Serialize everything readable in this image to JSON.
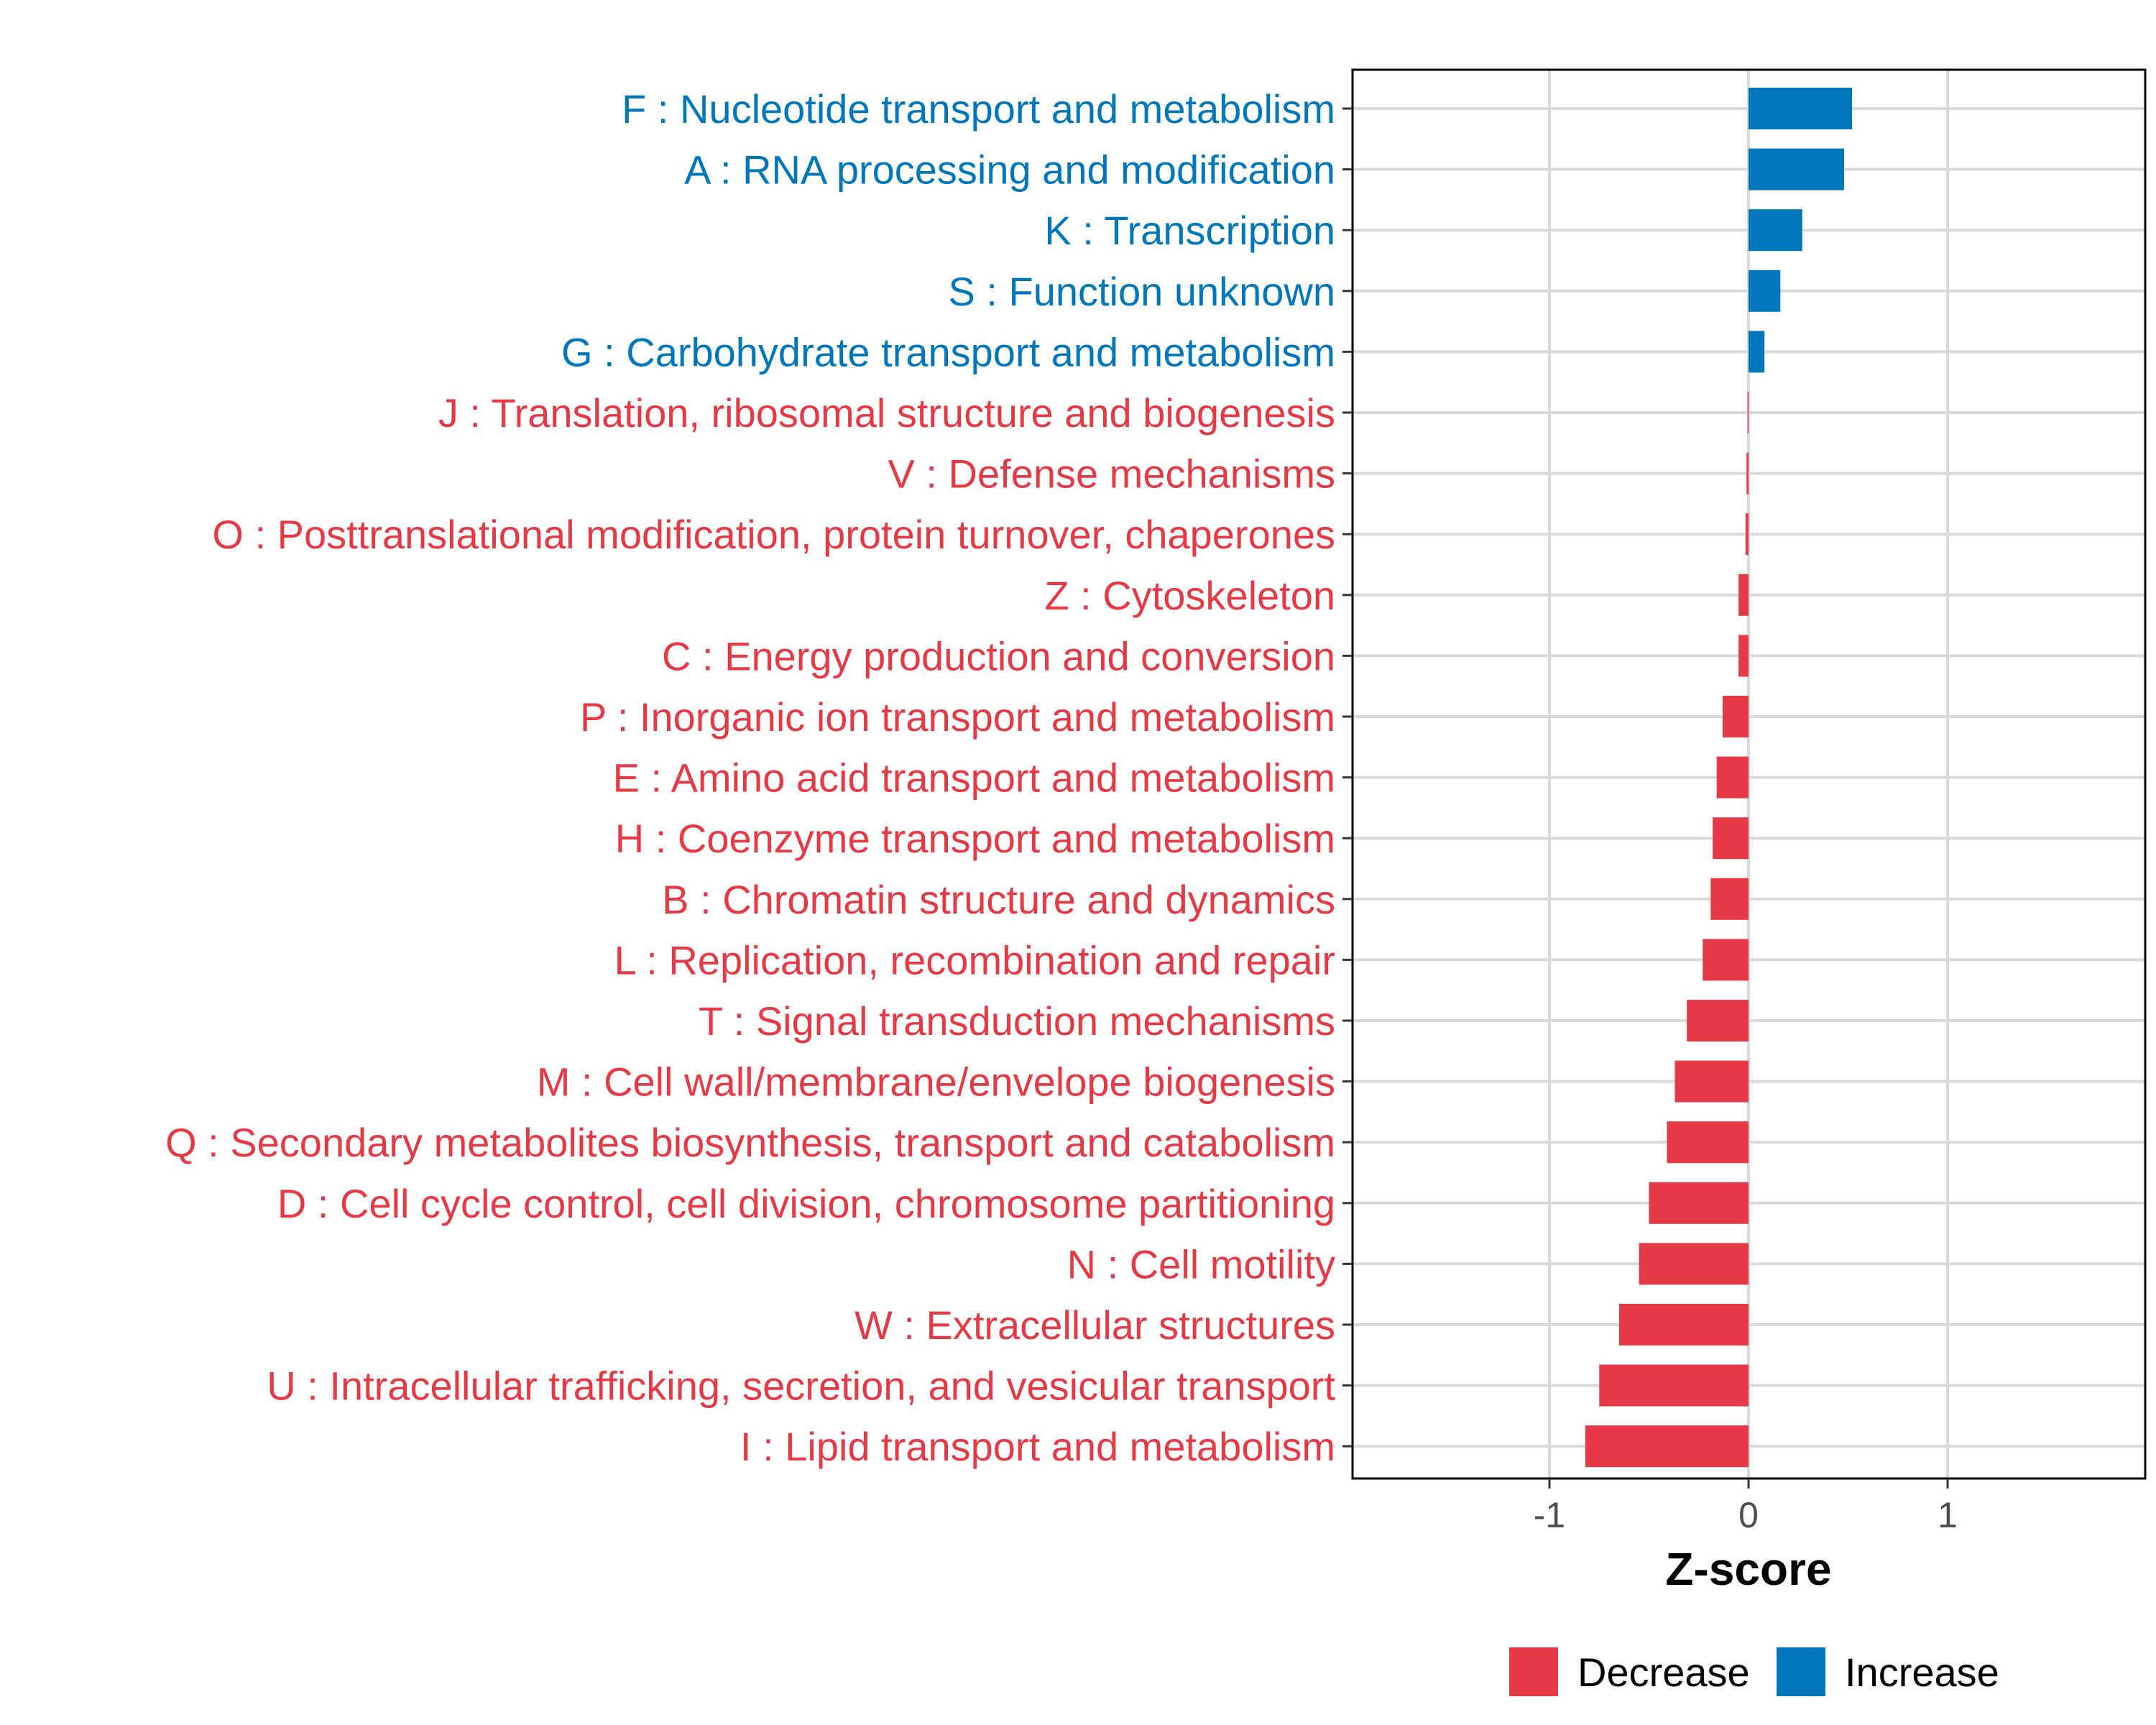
{
  "colors": {
    "decrease": "#E63946",
    "increase": "#0077BB",
    "grid": "#d9d9d9",
    "axis": "#000000"
  },
  "chart_data": {
    "type": "bar",
    "orientation": "horizontal",
    "title": "",
    "xlabel": "Z-score",
    "ylabel": "",
    "xlim": [
      -2,
      2
    ],
    "xticks": [
      -1,
      0,
      1
    ],
    "xtick_labels": [
      "-1",
      "0",
      "1"
    ],
    "grid": true,
    "legend_position": "bottom",
    "legend": [
      {
        "label": "Decrease",
        "color_key": "decrease"
      },
      {
        "label": "Increase",
        "color_key": "increase"
      }
    ],
    "categories": [
      "F : Nucleotide transport and metabolism",
      "A : RNA processing and modification",
      "K : Transcription",
      "S : Function unknown",
      "G : Carbohydrate transport and metabolism",
      "J : Translation, ribosomal structure and biogenesis",
      "V : Defense mechanisms",
      "O : Posttranslational modification, protein turnover, chaperones",
      "Z : Cytoskeleton",
      "C : Energy production and conversion",
      "P : Inorganic ion transport and metabolism",
      "E : Amino acid transport and metabolism",
      "H : Coenzyme transport and metabolism",
      "B : Chromatin structure and dynamics",
      "L : Replication, recombination and repair",
      "T : Signal transduction mechanisms",
      "M : Cell wall/membrane/envelope biogenesis",
      "Q : Secondary metabolites biosynthesis, transport and catabolism",
      "D : Cell cycle control, cell division, chromosome partitioning",
      "N : Cell motility",
      "W : Extracellular structures",
      "U : Intracellular trafficking, secretion, and vesicular transport",
      "I : Lipid transport and metabolism"
    ],
    "values": [
      0.52,
      0.48,
      0.27,
      0.16,
      0.08,
      -0.005,
      -0.01,
      -0.015,
      -0.05,
      -0.05,
      -0.13,
      -0.16,
      -0.18,
      -0.19,
      -0.23,
      -0.31,
      -0.37,
      -0.41,
      -0.5,
      -0.55,
      -0.65,
      -0.75,
      -0.82
    ],
    "directions": [
      "Increase",
      "Increase",
      "Increase",
      "Increase",
      "Increase",
      "Decrease",
      "Decrease",
      "Decrease",
      "Decrease",
      "Decrease",
      "Decrease",
      "Decrease",
      "Decrease",
      "Decrease",
      "Decrease",
      "Decrease",
      "Decrease",
      "Decrease",
      "Decrease",
      "Decrease",
      "Decrease",
      "Decrease",
      "Decrease"
    ]
  }
}
